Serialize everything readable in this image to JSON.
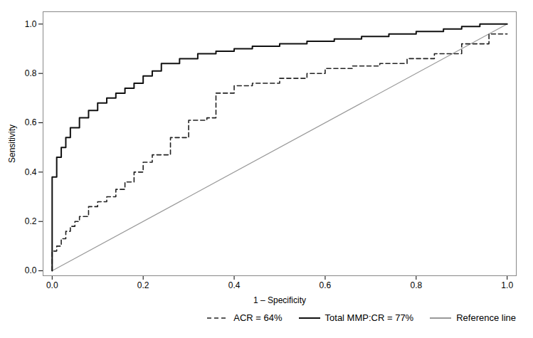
{
  "chart_data": {
    "type": "line",
    "xlabel": "1 – Specificity",
    "ylabel": "Sensitivity",
    "xlim": [
      -0.02,
      1.02
    ],
    "ylim": [
      -0.02,
      1.05
    ],
    "xticks": [
      {
        "value": 0,
        "label": "0.0"
      },
      0.2,
      0.4,
      0.6,
      0.8,
      {
        "value": 1.0,
        "label": "1.0"
      }
    ],
    "yticks": [
      {
        "value": 0,
        "label": "0.0"
      },
      0.2,
      0.4,
      0.6,
      0.8,
      {
        "value": 1.0,
        "label": "1.0"
      }
    ],
    "grid": false,
    "legend": "lower right",
    "series": [
      {
        "name": "ACR = 64%",
        "color": "#222222",
        "line_style": "dashed",
        "x": [
          0.0,
          0.0,
          0.01,
          0.01,
          0.02,
          0.02,
          0.03,
          0.03,
          0.04,
          0.04,
          0.05,
          0.05,
          0.06,
          0.06,
          0.08,
          0.08,
          0.1,
          0.1,
          0.12,
          0.12,
          0.14,
          0.14,
          0.16,
          0.16,
          0.18,
          0.18,
          0.2,
          0.2,
          0.22,
          0.22,
          0.26,
          0.26,
          0.3,
          0.3,
          0.34,
          0.34,
          0.36,
          0.36,
          0.4,
          0.4,
          0.44,
          0.44,
          0.5,
          0.5,
          0.56,
          0.56,
          0.6,
          0.6,
          0.66,
          0.66,
          0.72,
          0.72,
          0.78,
          0.78,
          0.84,
          0.84,
          0.9,
          0.9,
          0.96,
          0.96,
          1.0
        ],
        "values": [
          0.0,
          0.08,
          0.08,
          0.1,
          0.1,
          0.13,
          0.13,
          0.16,
          0.16,
          0.18,
          0.18,
          0.2,
          0.2,
          0.22,
          0.22,
          0.26,
          0.26,
          0.28,
          0.28,
          0.3,
          0.3,
          0.33,
          0.33,
          0.36,
          0.36,
          0.4,
          0.4,
          0.44,
          0.44,
          0.47,
          0.47,
          0.54,
          0.54,
          0.61,
          0.61,
          0.62,
          0.62,
          0.72,
          0.72,
          0.75,
          0.75,
          0.76,
          0.76,
          0.78,
          0.78,
          0.8,
          0.8,
          0.82,
          0.82,
          0.83,
          0.83,
          0.84,
          0.84,
          0.86,
          0.86,
          0.88,
          0.88,
          0.92,
          0.92,
          0.96,
          0.96
        ]
      },
      {
        "name": "Total MMP:CR = 77%",
        "color": "#111111",
        "line_style": "solid",
        "x": [
          0.0,
          0.0,
          0.01,
          0.01,
          0.02,
          0.02,
          0.03,
          0.03,
          0.04,
          0.04,
          0.06,
          0.06,
          0.08,
          0.08,
          0.1,
          0.1,
          0.12,
          0.12,
          0.14,
          0.14,
          0.16,
          0.16,
          0.18,
          0.18,
          0.2,
          0.2,
          0.22,
          0.22,
          0.24,
          0.24,
          0.28,
          0.28,
          0.32,
          0.32,
          0.36,
          0.36,
          0.4,
          0.4,
          0.44,
          0.44,
          0.5,
          0.5,
          0.56,
          0.56,
          0.62,
          0.62,
          0.68,
          0.68,
          0.74,
          0.74,
          0.8,
          0.8,
          0.86,
          0.86,
          0.9,
          0.9,
          0.94,
          0.94,
          0.98,
          0.98,
          1.0
        ],
        "values": [
          0.0,
          0.38,
          0.38,
          0.46,
          0.46,
          0.5,
          0.5,
          0.54,
          0.54,
          0.58,
          0.58,
          0.62,
          0.62,
          0.65,
          0.65,
          0.68,
          0.68,
          0.7,
          0.7,
          0.72,
          0.72,
          0.74,
          0.74,
          0.76,
          0.76,
          0.79,
          0.79,
          0.81,
          0.81,
          0.84,
          0.84,
          0.86,
          0.86,
          0.88,
          0.88,
          0.89,
          0.89,
          0.9,
          0.9,
          0.91,
          0.91,
          0.92,
          0.92,
          0.93,
          0.93,
          0.94,
          0.94,
          0.95,
          0.95,
          0.96,
          0.96,
          0.97,
          0.97,
          0.98,
          0.98,
          0.99,
          0.99,
          1.0,
          1.0,
          1.0,
          1.0
        ]
      },
      {
        "name": "Reference line",
        "color": "#999999",
        "line_style": "solid",
        "x": [
          0,
          1
        ],
        "values": [
          0,
          1
        ]
      }
    ]
  }
}
